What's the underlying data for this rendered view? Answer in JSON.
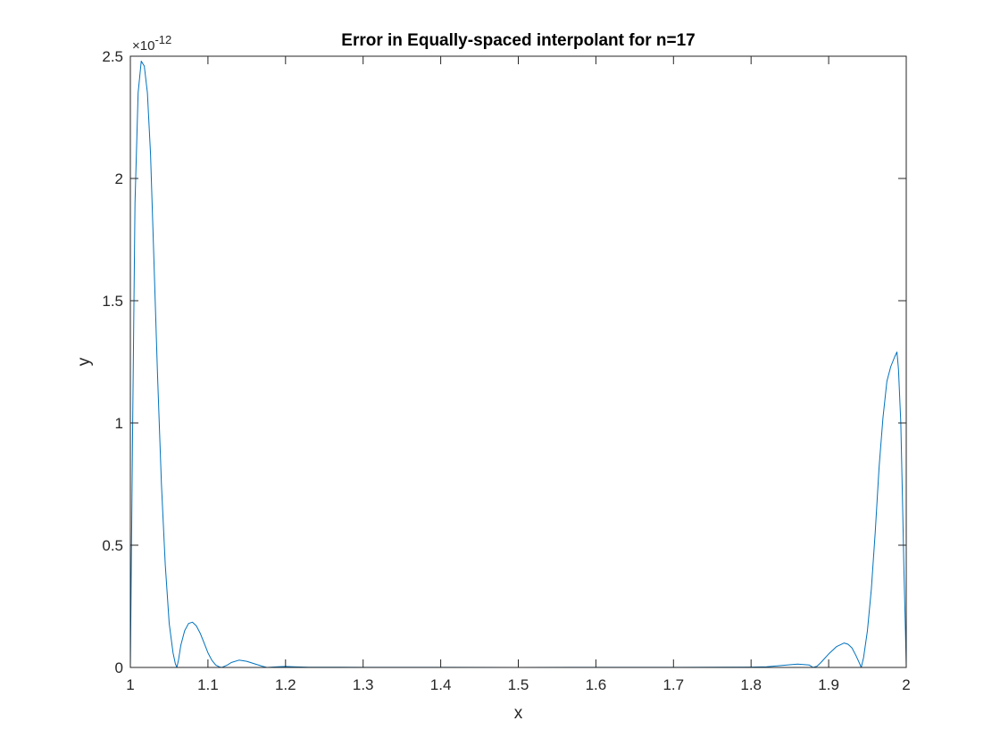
{
  "chart_data": {
    "type": "line",
    "title": "Error in Equally-spaced interpolant for n=17",
    "xlabel": "x",
    "ylabel": "y",
    "xlim": [
      1,
      2
    ],
    "ylim": [
      0,
      2.5e-12
    ],
    "x_ticks": [
      "1",
      "1.1",
      "1.2",
      "1.3",
      "1.4",
      "1.5",
      "1.6",
      "1.7",
      "1.8",
      "1.9",
      "2"
    ],
    "y_ticks": [
      "0",
      "0.5",
      "1",
      "1.5",
      "2",
      "2.5"
    ],
    "y_exponent_prefix": "×10",
    "y_exponent_power": "-12",
    "grid": false,
    "legend": "none",
    "series": [
      {
        "color": "#0072BD",
        "x": [
          1.0,
          1.003,
          1.006,
          1.01,
          1.014,
          1.018,
          1.022,
          1.026,
          1.03,
          1.035,
          1.04,
          1.045,
          1.05,
          1.055,
          1.058,
          1.06,
          1.062,
          1.065,
          1.07,
          1.075,
          1.08,
          1.085,
          1.09,
          1.095,
          1.1,
          1.105,
          1.11,
          1.115,
          1.118,
          1.125,
          1.13,
          1.14,
          1.15,
          1.16,
          1.17,
          1.176,
          1.19,
          1.2,
          1.21,
          1.23,
          1.25,
          1.3,
          1.4,
          1.5,
          1.6,
          1.7,
          1.75,
          1.8,
          1.82,
          1.84,
          1.86,
          1.875,
          1.88,
          1.885,
          1.89,
          1.9,
          1.91,
          1.92,
          1.925,
          1.93,
          1.935,
          1.94,
          1.942,
          1.945,
          1.95,
          1.955,
          1.96,
          1.965,
          1.97,
          1.975,
          1.98,
          1.985,
          1.988,
          1.99,
          1.993,
          1.995,
          1.997,
          1.999,
          2.0
        ],
        "y": [
          0,
          1e-12,
          1.9e-12,
          2.35e-12,
          2.48e-12,
          2.46e-12,
          2.35e-12,
          2.1e-12,
          1.7e-12,
          1.2e-12,
          7.5e-13,
          4.2e-13,
          1.8e-13,
          6e-14,
          1.5e-14,
          0,
          3e-14,
          9e-14,
          1.5e-13,
          1.8e-13,
          1.85e-13,
          1.7e-13,
          1.4e-13,
          1e-13,
          6e-14,
          3e-14,
          1e-14,
          2e-15,
          0,
          1e-14,
          2e-14,
          3e-14,
          2.5e-14,
          1.5e-14,
          5e-15,
          0,
          3e-15,
          4e-15,
          3e-15,
          1e-15,
          1e-15,
          5e-16,
          2e-16,
          1e-16,
          2e-16,
          5e-16,
          8e-16,
          1.5e-15,
          3e-15,
          8e-15,
          1.4e-14,
          1e-14,
          0,
          5e-15,
          2e-14,
          5.5e-14,
          8.5e-14,
          1e-13,
          9.5e-14,
          8e-14,
          5e-14,
          1.5e-14,
          0,
          4e-14,
          1.5e-13,
          3.2e-13,
          5.5e-13,
          8.2e-13,
          1.02e-12,
          1.17e-12,
          1.23e-12,
          1.27e-12,
          1.29e-12,
          1.22e-12,
          1e-12,
          7e-13,
          4e-13,
          1.5e-13,
          0
        ]
      }
    ]
  }
}
